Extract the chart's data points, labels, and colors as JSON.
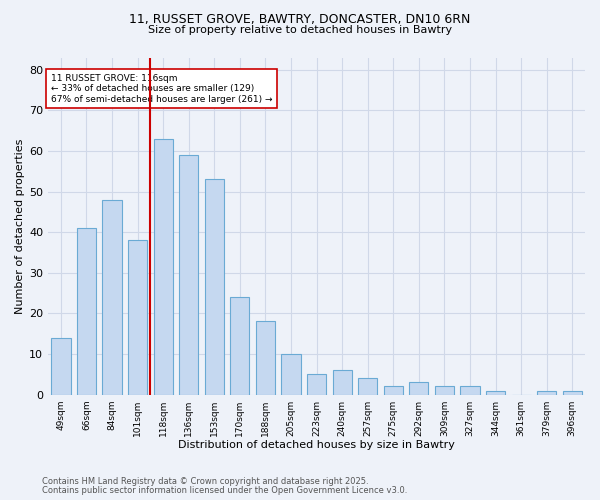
{
  "title1": "11, RUSSET GROVE, BAWTRY, DONCASTER, DN10 6RN",
  "title2": "Size of property relative to detached houses in Bawtry",
  "xlabel": "Distribution of detached houses by size in Bawtry",
  "ylabel": "Number of detached properties",
  "categories": [
    "49sqm",
    "66sqm",
    "84sqm",
    "101sqm",
    "118sqm",
    "136sqm",
    "153sqm",
    "170sqm",
    "188sqm",
    "205sqm",
    "223sqm",
    "240sqm",
    "257sqm",
    "275sqm",
    "292sqm",
    "309sqm",
    "327sqm",
    "344sqm",
    "361sqm",
    "379sqm",
    "396sqm"
  ],
  "values": [
    14,
    41,
    48,
    38,
    63,
    59,
    53,
    24,
    18,
    10,
    5,
    6,
    4,
    2,
    3,
    2,
    2,
    1,
    0,
    1,
    1
  ],
  "bar_color": "#c5d8f0",
  "bar_edge_color": "#6aaad4",
  "vline_color": "#cc0000",
  "annotation_text": "11 RUSSET GROVE: 116sqm\n← 33% of detached houses are smaller (129)\n67% of semi-detached houses are larger (261) →",
  "annotation_box_color": "#ffffff",
  "annotation_box_edge": "#cc0000",
  "ylim": [
    0,
    83
  ],
  "yticks": [
    0,
    10,
    20,
    30,
    40,
    50,
    60,
    70,
    80
  ],
  "footer1": "Contains HM Land Registry data © Crown copyright and database right 2025.",
  "footer2": "Contains public sector information licensed under the Open Government Licence v3.0.",
  "bg_color": "#eef2f9",
  "grid_color": "#d0d8e8"
}
